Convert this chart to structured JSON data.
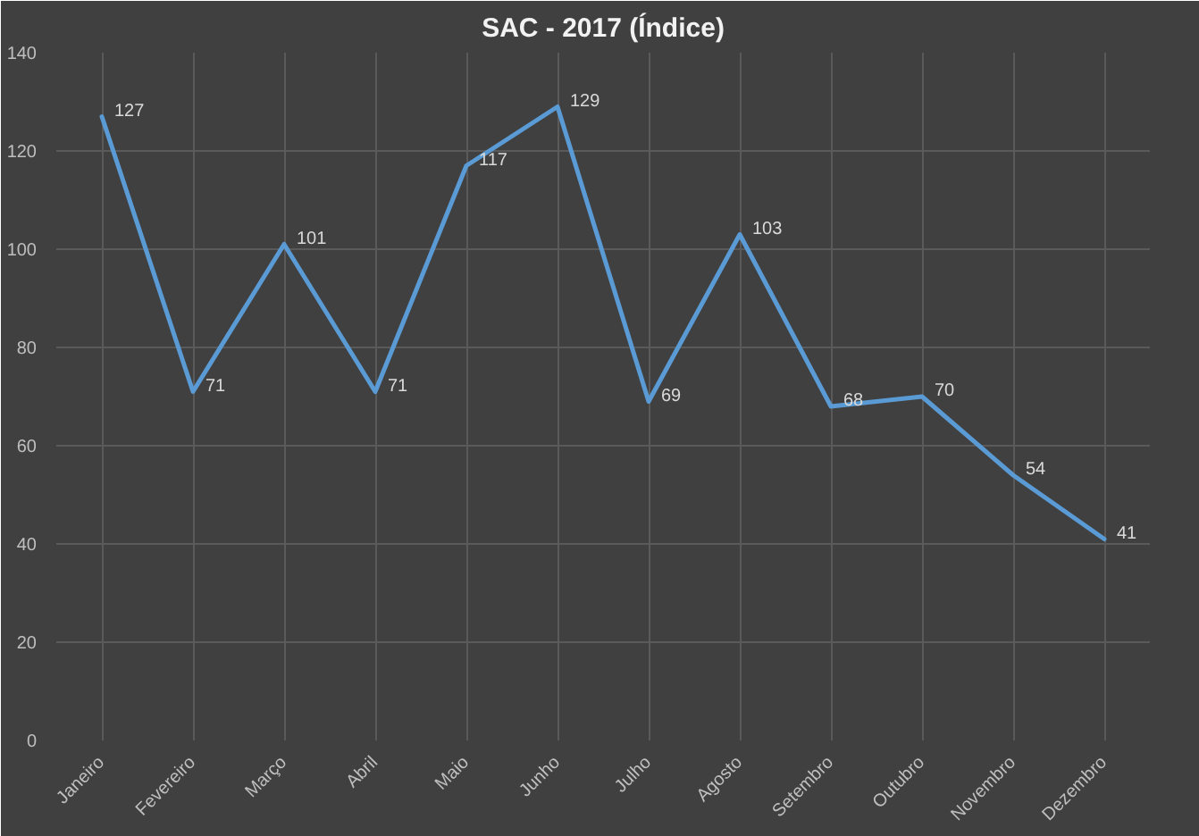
{
  "chart_data": {
    "type": "line",
    "title": "SAC - 2017 (Índice)",
    "categories": [
      "Janeiro",
      "Fevereiro",
      "Março",
      "Abril",
      "Maio",
      "Junho",
      "Julho",
      "Agosto",
      "Setembro",
      "Outubro",
      "Novembro",
      "Dezembro"
    ],
    "series": [
      {
        "color": "#5b9bd5",
        "values": [
          127,
          71,
          101,
          71,
          117,
          129,
          69,
          103,
          68,
          70,
          54,
          41
        ]
      }
    ],
    "ylim": [
      0,
      140
    ],
    "yticks": [
      0,
      20,
      40,
      60,
      80,
      100,
      120,
      140
    ],
    "grid": true,
    "data_labels": true,
    "marker": "none",
    "line_style": "solid"
  }
}
